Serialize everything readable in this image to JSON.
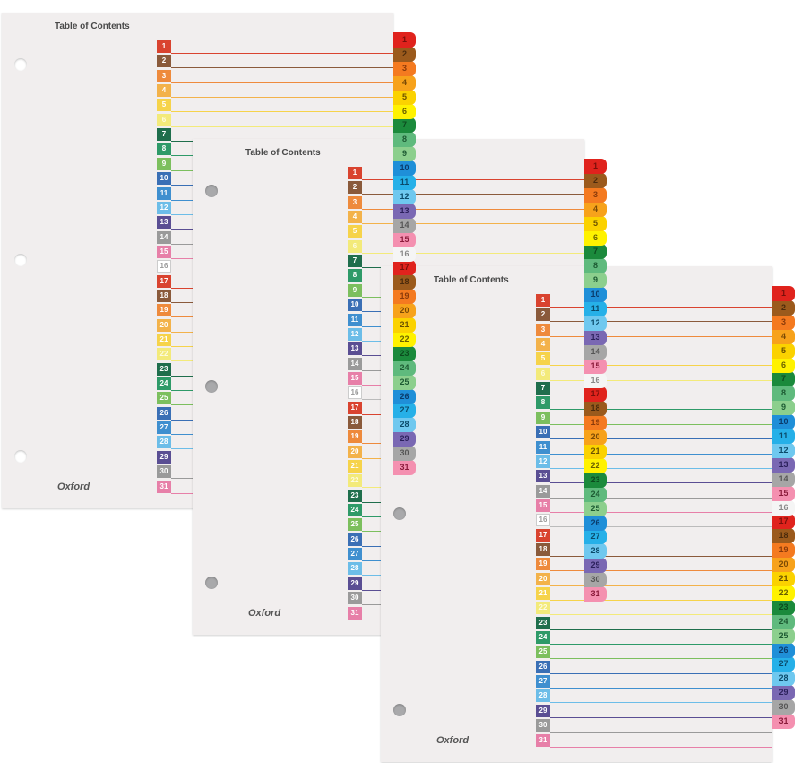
{
  "sheet": {
    "title": "Table of Contents",
    "brand": "Oxford",
    "entries": [
      "1",
      "2",
      "3",
      "4",
      "5",
      "6",
      "7",
      "8",
      "9",
      "10",
      "11",
      "12",
      "13",
      "14",
      "15",
      "16",
      "17",
      "18",
      "19",
      "20",
      "21",
      "22",
      "23",
      "24",
      "25",
      "26",
      "27",
      "28",
      "29",
      "30",
      "31"
    ]
  },
  "sheet_count": 3,
  "colors": {
    "number_boxes": [
      "#d9432f",
      "#8a5a3b",
      "#ee8a3c",
      "#f3b24a",
      "#f6d34a",
      "#f3ea7a",
      "#1f6e4c",
      "#2e9a68",
      "#7cbf5e",
      "#3a6fb5",
      "#3f8fcf",
      "#6cbde8",
      "#5a4e93",
      "#9a9a9a",
      "#e77fa8",
      "#ffffff"
    ],
    "tabs": [
      "#e0231d",
      "#9b5a1c",
      "#f47a20",
      "#f7a21b",
      "#fbd200",
      "#fff200",
      "#1b8a3c",
      "#5fba7d",
      "#8ccf8d",
      "#1f8fd8",
      "#26b0e8",
      "#6fc8ef",
      "#7a68b3",
      "#a6a6a6",
      "#f490b0",
      "#f5f5f5"
    ],
    "tab_text": [
      "#7a0f0a",
      "#4a2a0c",
      "#8a3a0a",
      "#7a4a05",
      "#6a5000",
      "#6a6000",
      "#0c4a1e",
      "#1c5a32",
      "#1c5a32",
      "#0a3a6a",
      "#0a4a6a",
      "#0a4a6a",
      "#2a1f5a",
      "#555555",
      "#8a1a3a",
      "#888888"
    ],
    "paper": "#f1eeee"
  }
}
